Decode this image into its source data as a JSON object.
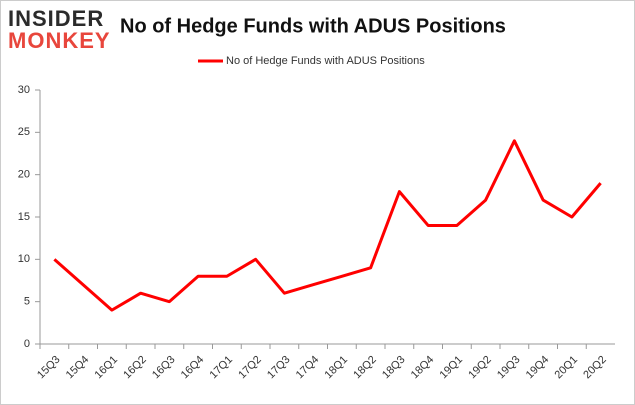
{
  "logo": {
    "line1": "INSIDER",
    "line2": "MONKEY"
  },
  "chart_data": {
    "type": "line",
    "title": "No of Hedge Funds with ADUS Positions",
    "categories": [
      "15Q3",
      "15Q4",
      "16Q1",
      "16Q2",
      "16Q3",
      "16Q4",
      "17Q1",
      "17Q2",
      "17Q3",
      "17Q4",
      "18Q1",
      "18Q2",
      "18Q3",
      "18Q4",
      "19Q1",
      "19Q2",
      "19Q3",
      "19Q4",
      "20Q1",
      "20Q2"
    ],
    "series": [
      {
        "name": "No of Hedge Funds with ADUS Positions",
        "color": "#ff0000",
        "values": [
          10,
          7,
          4,
          6,
          5,
          8,
          8,
          10,
          6,
          7,
          8,
          9,
          18,
          14,
          14,
          17,
          24,
          17,
          15,
          19
        ]
      }
    ],
    "ylim": [
      0,
      30
    ],
    "yticks": [
      0,
      5,
      10,
      15,
      20,
      25,
      30
    ],
    "grid": false,
    "legend": "top"
  }
}
